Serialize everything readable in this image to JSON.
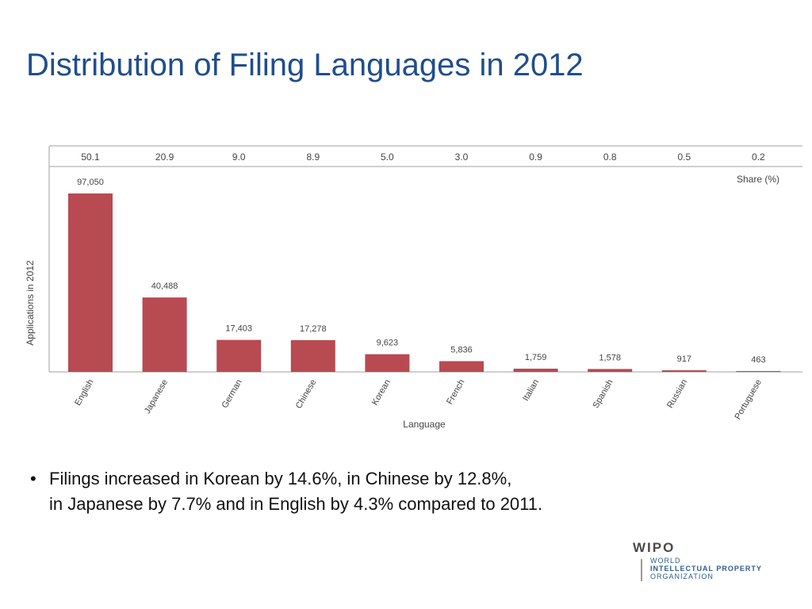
{
  "slide": {
    "title": "Distribution of Filing Languages in 2012",
    "bullet_text": "Filings increased in Korean by 14.6%, in Chinese by 12.8%,",
    "bullet_text_line2": "in Japanese by 7.7% and in English by 4.3% compared to 2011."
  },
  "logo": {
    "name": "WIPO",
    "line1": "WORLD",
    "line2": "INTELLECTUAL PROPERTY",
    "line3": "ORGANIZATION"
  },
  "chart_data": {
    "type": "bar",
    "title": "",
    "xlabel": "Language",
    "ylabel": "Applications in 2012",
    "share_label": "Share (%)",
    "categories": [
      "English",
      "Japanese",
      "German",
      "Chinese",
      "Korean",
      "French",
      "Italian",
      "Spanish",
      "Russian",
      "Portuguese"
    ],
    "values": [
      97050,
      40488,
      17403,
      17278,
      9623,
      5836,
      1759,
      1578,
      917,
      463
    ],
    "value_labels": [
      "97,050",
      "40,488",
      "17,403",
      "17,278",
      "9,623",
      "5,836",
      "1,759",
      "1,578",
      "917",
      "463"
    ],
    "share": [
      "50.1",
      "20.9",
      "9.0",
      "8.9",
      "5.0",
      "3.0",
      "0.9",
      "0.8",
      "0.5",
      "0.2"
    ],
    "ylim": [
      0,
      100000
    ],
    "grid": false,
    "colors": {
      "bar": "#b84a52",
      "axis": "#a0a0a0",
      "text": "#444444"
    }
  }
}
